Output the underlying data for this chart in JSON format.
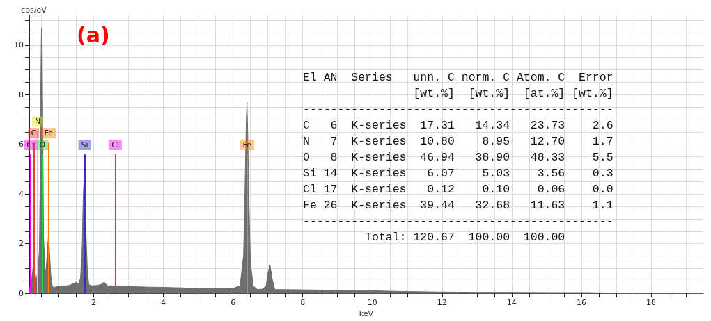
{
  "chart_data": {
    "type": "area",
    "title": "(a)",
    "xlabel": "keV",
    "ylabel": "cps/eV",
    "series": [
      {
        "color": "#6e6e6e",
        "x": [
          0.15,
          0.18,
          0.2,
          0.22,
          0.25,
          0.27,
          0.3,
          0.33,
          0.36,
          0.4,
          0.44,
          0.46,
          0.48,
          0.5,
          0.52,
          0.54,
          0.56,
          0.6,
          0.63,
          0.66,
          0.7,
          0.72,
          0.75,
          0.78,
          0.82,
          0.9,
          1.0,
          1.1,
          1.2,
          1.3,
          1.4,
          1.5,
          1.55,
          1.62,
          1.67,
          1.7,
          1.72,
          1.74,
          1.76,
          1.78,
          1.82,
          1.86,
          1.95,
          2.1,
          2.2,
          2.3,
          2.4,
          2.6,
          2.8,
          3.0,
          3.3,
          3.6,
          4.0,
          4.5,
          5.0,
          5.5,
          6.0,
          6.2,
          6.3,
          6.34,
          6.38,
          6.4,
          6.42,
          6.46,
          6.5,
          6.58,
          6.7,
          6.85,
          6.95,
          7.0,
          7.06,
          7.12,
          7.2,
          7.4,
          8.0,
          9.0,
          10.0,
          11.0,
          12.0,
          13.0,
          14.0,
          15.0,
          16.0,
          16.6,
          16.7,
          19.5
        ],
        "values": [
          0.1,
          0.3,
          0.6,
          0.6,
          0.9,
          1.4,
          0.8,
          0.5,
          0.6,
          1.0,
          1.7,
          4.3,
          8.2,
          10.7,
          10.4,
          6.4,
          2.3,
          1.0,
          0.9,
          1.5,
          2.3,
          2.0,
          1.2,
          0.5,
          0.25,
          0.25,
          0.28,
          0.3,
          0.3,
          0.32,
          0.38,
          0.45,
          0.35,
          0.6,
          1.9,
          4.0,
          4.5,
          4.5,
          4.1,
          2.4,
          0.9,
          0.35,
          0.3,
          0.32,
          0.35,
          0.45,
          0.3,
          0.3,
          0.28,
          0.28,
          0.26,
          0.25,
          0.24,
          0.22,
          0.2,
          0.2,
          0.2,
          0.3,
          1.5,
          4.0,
          7.0,
          7.7,
          6.5,
          3.5,
          1.2,
          0.3,
          0.15,
          0.17,
          0.3,
          0.8,
          1.15,
          0.6,
          0.15,
          0.15,
          0.14,
          0.12,
          0.1,
          0.07,
          0.05,
          0.04,
          0.04,
          0.03,
          0.03,
          0.02,
          0,
          0
        ]
      }
    ],
    "xlim": [
      0.15,
      19.5
    ],
    "xticks": [
      {
        "value": 0.5,
        "label": null
      },
      {
        "value": 1,
        "label": null
      },
      {
        "value": 1.5,
        "label": null
      },
      2,
      {
        "value": 2.5,
        "label": null
      },
      {
        "value": 3,
        "label": null
      },
      {
        "value": 3.5,
        "label": null
      },
      4,
      {
        "value": 4.5,
        "label": null
      },
      {
        "value": 5,
        "label": null
      },
      {
        "value": 5.5,
        "label": null
      },
      6,
      {
        "value": 6.5,
        "label": null
      },
      {
        "value": 7,
        "label": null
      },
      {
        "value": 7.5,
        "label": null
      },
      8,
      {
        "value": 8.5,
        "label": null
      },
      {
        "value": 9,
        "label": null
      },
      {
        "value": 9.5,
        "label": null
      },
      10,
      {
        "value": 10.5,
        "label": null
      },
      {
        "value": 11,
        "label": null
      },
      {
        "value": 11.5,
        "label": null
      },
      12,
      {
        "value": 12.5,
        "label": null
      },
      {
        "value": 13,
        "label": null
      },
      {
        "value": 13.5,
        "label": null
      },
      14,
      {
        "value": 14.5,
        "label": null
      },
      {
        "value": 15,
        "label": null
      },
      {
        "value": 15.5,
        "label": null
      },
      16,
      {
        "value": 16.5,
        "label": null
      },
      {
        "value": 17,
        "label": null
      },
      {
        "value": 17.5,
        "label": null
      },
      18,
      {
        "value": 18.5,
        "label": null
      },
      {
        "value": 19,
        "label": null
      }
    ],
    "ylim": [
      0,
      11.2
    ],
    "yticks": [
      0,
      {
        "value": 0.5,
        "label": null
      },
      {
        "value": 1,
        "label": null
      },
      {
        "value": 1.5,
        "label": null
      },
      2,
      {
        "value": 2.5,
        "label": null
      },
      {
        "value": 3,
        "label": null
      },
      {
        "value": 3.5,
        "label": null
      },
      4,
      {
        "value": 4.5,
        "label": null
      },
      {
        "value": 5,
        "label": null
      },
      {
        "value": 5.5,
        "label": null
      },
      6,
      {
        "value": 6.5,
        "label": null
      },
      {
        "value": 7,
        "label": null
      },
      {
        "value": 7.5,
        "label": null
      },
      8,
      {
        "value": 8.5,
        "label": null
      },
      {
        "value": 9,
        "label": null
      },
      {
        "value": 9.5,
        "label": null
      },
      10,
      {
        "value": 10.5,
        "label": null
      },
      {
        "value": 11,
        "label": null
      }
    ],
    "grid": true,
    "ref_lines": [
      {
        "axis": "x",
        "value": 0.18,
        "label": "Cl",
        "color": "#ff00ff"
      },
      {
        "axis": "x",
        "value": 0.277,
        "label": "C",
        "color": "#ff3333"
      },
      {
        "axis": "x",
        "value": 0.392,
        "label": "N",
        "color": "#e6e600"
      },
      {
        "axis": "x",
        "value": 0.525,
        "label": "O",
        "color": "#33cc33"
      },
      {
        "axis": "x",
        "value": 0.705,
        "label": "Fe",
        "color": "#ff8000"
      },
      {
        "axis": "x",
        "value": 1.74,
        "label": "Si",
        "color": "#3333cc"
      },
      {
        "axis": "x",
        "value": 2.62,
        "label": "Cl",
        "color": "#ff00ff"
      },
      {
        "axis": "x",
        "value": 6.4,
        "label": "Fe",
        "color": "#ff8000"
      }
    ],
    "annotations": [
      "El AN  Series   unn. C norm. C Atom. C  Error",
      "                [wt.%]  [wt.%]  [at.%] [wt.%]",
      "---------------------------------------------",
      "C   6  K-series  17.31   14.34   23.73    2.6",
      "N   7  K-series  10.80    8.95   12.70    1.7",
      "O   8  K-series  46.94   38.90   48.33    5.5",
      "Si 14  K-series   6.07    5.03    3.56    0.3",
      "Cl 17  K-series   0.12    0.10    0.06    0.0",
      "Fe 26  K-series  39.44   32.68   11.63    1.1",
      "---------------------------------------------",
      "         Total: 120.67  100.00  100.00"
    ]
  }
}
